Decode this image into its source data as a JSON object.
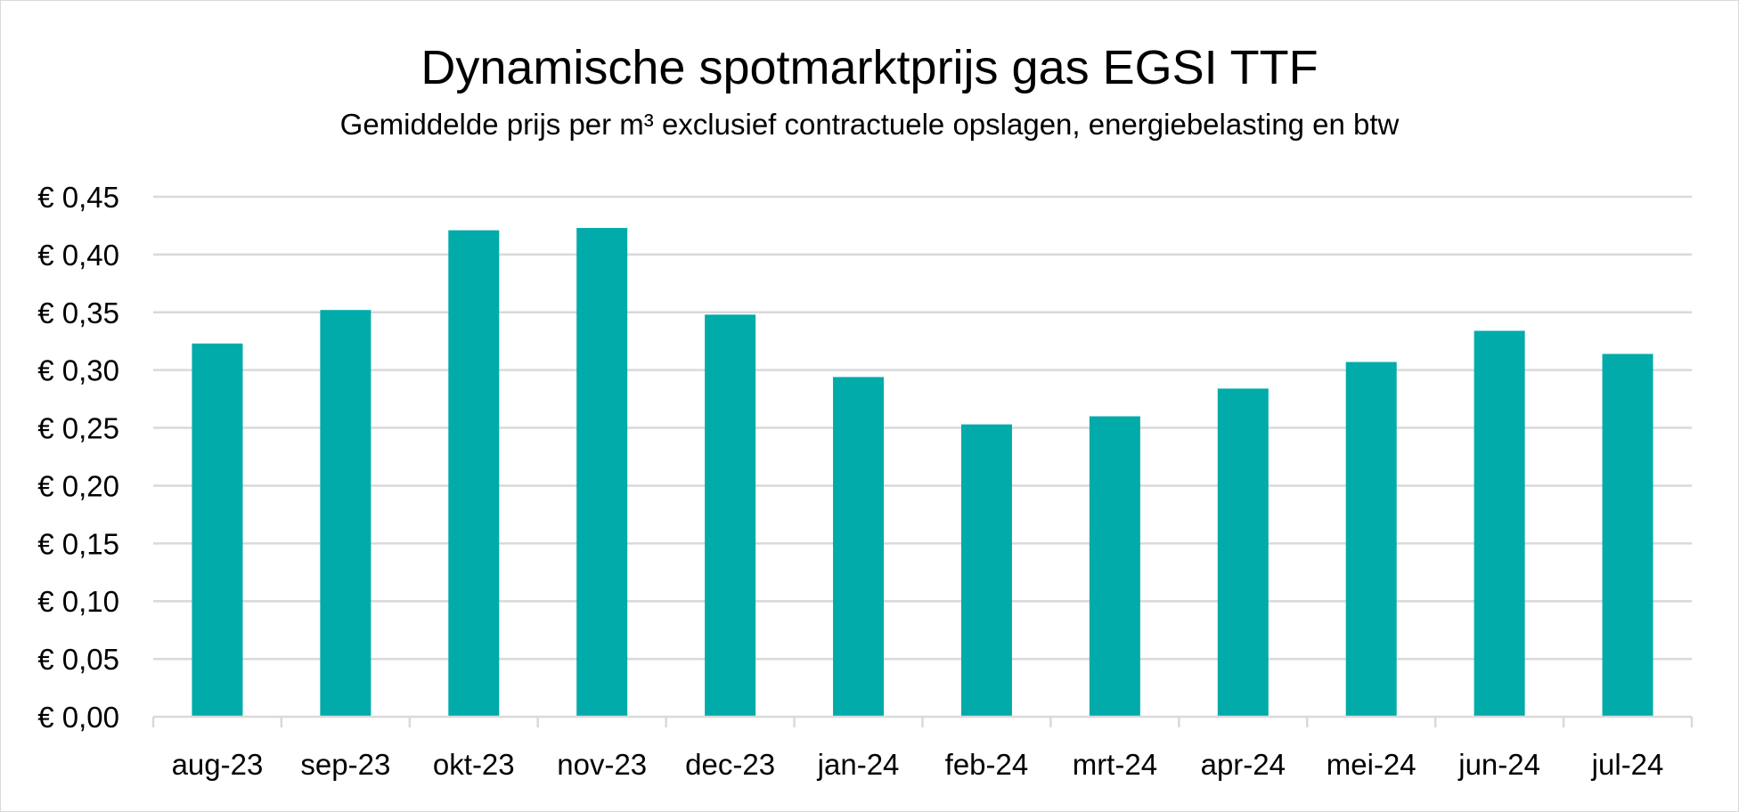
{
  "chart_data": {
    "type": "bar",
    "title": "Dynamische spotmarktprijs gas EGSI TTF",
    "subtitle": "Gemiddelde prijs per m³ exclusief contractuele opslagen, energiebelasting en btw",
    "xlabel": "",
    "ylabel": "",
    "categories": [
      "aug-23",
      "sep-23",
      "okt-23",
      "nov-23",
      "dec-23",
      "jan-24",
      "feb-24",
      "mrt-24",
      "apr-24",
      "mei-24",
      "jun-24",
      "jul-24"
    ],
    "values": [
      0.323,
      0.352,
      0.421,
      0.423,
      0.348,
      0.294,
      0.253,
      0.26,
      0.284,
      0.307,
      0.334,
      0.314
    ],
    "ylim": [
      0,
      0.45
    ],
    "yticks": [
      0,
      0.05,
      0.1,
      0.15,
      0.2,
      0.25,
      0.3,
      0.35,
      0.4,
      0.45
    ],
    "ytick_labels": [
      "€ 0,00",
      "€ 0,05",
      "€ 0,10",
      "€ 0,15",
      "€ 0,20",
      "€ 0,25",
      "€ 0,30",
      "€ 0,35",
      "€ 0,40",
      "€ 0,45"
    ],
    "grid": true,
    "legend": "none",
    "bar_color": "#00ABA9",
    "grid_color": "#d9d9d9"
  }
}
